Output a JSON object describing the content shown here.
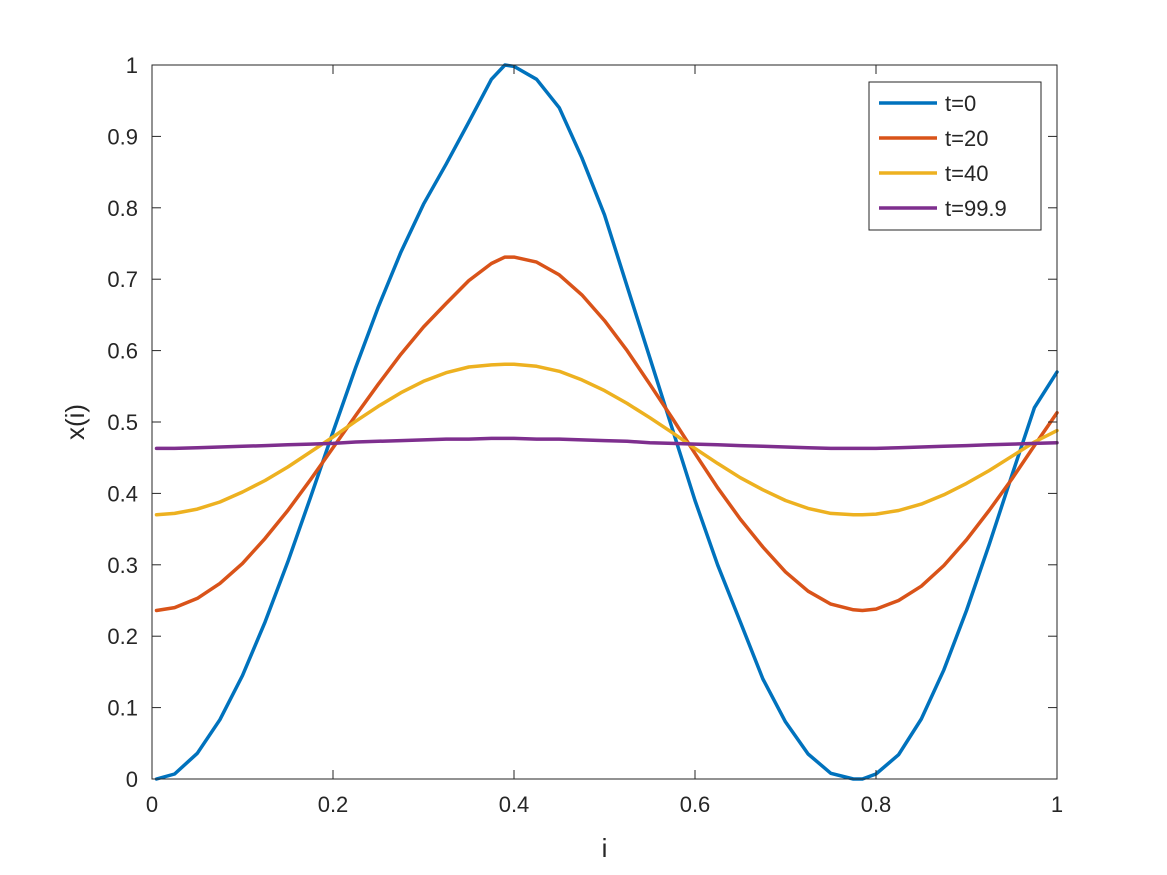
{
  "chart_data": {
    "type": "line",
    "xlabel": "i",
    "ylabel": "x(i)",
    "xlim": [
      0,
      1
    ],
    "ylim": [
      0,
      1
    ],
    "xticks": [
      "0",
      "0.2",
      "0.4",
      "0.6",
      "0.8",
      "1"
    ],
    "yticks": [
      "0",
      "0.1",
      "0.2",
      "0.3",
      "0.4",
      "0.5",
      "0.6",
      "0.7",
      "0.8",
      "0.9",
      "1"
    ],
    "grid": false,
    "legend_position": "top-right",
    "x": [
      0.005,
      0.025,
      0.05,
      0.075,
      0.1,
      0.125,
      0.15,
      0.175,
      0.2,
      0.225,
      0.25,
      0.275,
      0.3,
      0.325,
      0.35,
      0.375,
      0.39,
      0.4,
      0.425,
      0.45,
      0.475,
      0.5,
      0.525,
      0.55,
      0.575,
      0.6,
      0.625,
      0.65,
      0.675,
      0.7,
      0.725,
      0.75,
      0.775,
      0.785,
      0.8,
      0.825,
      0.85,
      0.875,
      0.9,
      0.925,
      0.95,
      0.975,
      1.0
    ],
    "series": [
      {
        "name": "t=0",
        "color": "#0072BD",
        "values": [
          0.0,
          0.007,
          0.036,
          0.083,
          0.145,
          0.22,
          0.304,
          0.394,
          0.486,
          0.576,
          0.661,
          0.738,
          0.805,
          0.861,
          0.92,
          0.98,
          1.0,
          0.998,
          0.98,
          0.94,
          0.87,
          0.79,
          0.69,
          0.59,
          0.49,
          0.39,
          0.3,
          0.22,
          0.14,
          0.08,
          0.035,
          0.008,
          0.0,
          0.0,
          0.007,
          0.034,
          0.084,
          0.153,
          0.236,
          0.328,
          0.425,
          0.52,
          0.57
        ]
      },
      {
        "name": "t=20",
        "color": "#D95319",
        "values": [
          0.236,
          0.24,
          0.253,
          0.274,
          0.302,
          0.337,
          0.376,
          0.419,
          0.464,
          0.509,
          0.553,
          0.595,
          0.633,
          0.666,
          0.698,
          0.722,
          0.731,
          0.731,
          0.724,
          0.706,
          0.678,
          0.642,
          0.6,
          0.553,
          0.505,
          0.456,
          0.408,
          0.364,
          0.325,
          0.29,
          0.263,
          0.245,
          0.237,
          0.236,
          0.238,
          0.25,
          0.27,
          0.299,
          0.335,
          0.376,
          0.42,
          0.467,
          0.513
        ]
      },
      {
        "name": "t=40",
        "color": "#EDB120",
        "values": [
          0.37,
          0.372,
          0.378,
          0.388,
          0.402,
          0.418,
          0.437,
          0.458,
          0.479,
          0.501,
          0.522,
          0.541,
          0.557,
          0.569,
          0.577,
          0.58,
          0.581,
          0.581,
          0.578,
          0.571,
          0.559,
          0.544,
          0.526,
          0.506,
          0.485,
          0.463,
          0.442,
          0.422,
          0.405,
          0.39,
          0.379,
          0.372,
          0.37,
          0.37,
          0.371,
          0.376,
          0.385,
          0.398,
          0.414,
          0.432,
          0.452,
          0.472,
          0.488
        ]
      },
      {
        "name": "t=99.9",
        "color": "#7E2F8E",
        "values": [
          0.463,
          0.463,
          0.464,
          0.465,
          0.466,
          0.467,
          0.468,
          0.469,
          0.47,
          0.472,
          0.473,
          0.474,
          0.475,
          0.476,
          0.476,
          0.477,
          0.477,
          0.477,
          0.476,
          0.476,
          0.475,
          0.474,
          0.473,
          0.471,
          0.47,
          0.469,
          0.468,
          0.467,
          0.466,
          0.465,
          0.464,
          0.463,
          0.463,
          0.463,
          0.463,
          0.464,
          0.465,
          0.466,
          0.467,
          0.468,
          0.469,
          0.47,
          0.471
        ]
      }
    ]
  }
}
